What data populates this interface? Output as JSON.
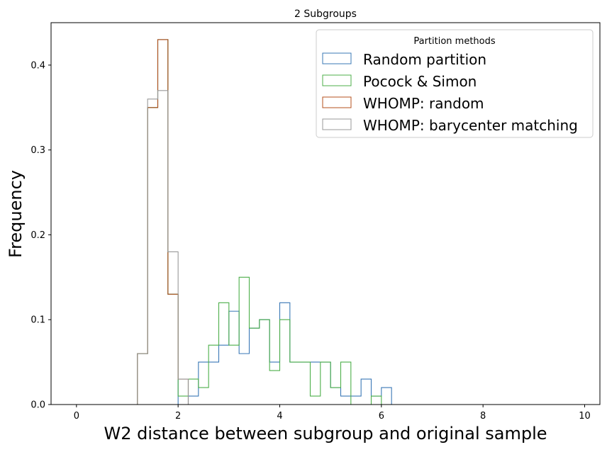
{
  "chart_data": {
    "type": "histogram-step",
    "title": "2 Subgroups",
    "xlabel": "W2 distance between subgroup and original sample",
    "ylabel": "Frequency",
    "xlim": [
      -0.5,
      10.3
    ],
    "ylim": [
      0,
      0.45
    ],
    "xticks": [
      0,
      2,
      4,
      6,
      8,
      10
    ],
    "yticks": [
      0.0,
      0.1,
      0.2,
      0.3,
      0.4
    ],
    "xtick_labels": [
      "0",
      "2",
      "4",
      "6",
      "8",
      "10"
    ],
    "ytick_labels": [
      "0.0",
      "0.1",
      "0.2",
      "0.3",
      "0.4"
    ],
    "bin_start": 0,
    "bin_width": 0.2,
    "x_end": 9.8,
    "legend": {
      "title": "Partition methods",
      "position": "top-right"
    },
    "series": [
      {
        "name": "Random partition",
        "color": "#3a78b6",
        "values": [
          0,
          0,
          0,
          0,
          0,
          0,
          0.06,
          0.35,
          0.43,
          0.13,
          0,
          0.01,
          0.05,
          0.05,
          0.07,
          0.11,
          0.06,
          0.09,
          0.1,
          0.05,
          0.12,
          0.05,
          0.05,
          0.05,
          0.05,
          0.02,
          0.01,
          0.01,
          0.03,
          0.01,
          0.02
        ]
      },
      {
        "name": "Pocock & Simon",
        "color": "#4daf4a",
        "values": [
          0,
          0,
          0,
          0,
          0,
          0,
          0.06,
          0.35,
          0.43,
          0.13,
          0.01,
          0.03,
          0.02,
          0.07,
          0.12,
          0.07,
          0.15,
          0.09,
          0.1,
          0.04,
          0.1,
          0.05,
          0.05,
          0.01,
          0.05,
          0.02,
          0.05,
          0,
          0,
          0.01,
          0
        ]
      },
      {
        "name": "WHOMP: random",
        "color": "#b5501e",
        "values": [
          0,
          0,
          0,
          0,
          0,
          0,
          0.06,
          0.35,
          0.43,
          0.13,
          0.03,
          0
        ]
      },
      {
        "name": "WHOMP: barycenter matching",
        "color": "#999999",
        "values": [
          0,
          0,
          0,
          0,
          0,
          0,
          0.06,
          0.36,
          0.37,
          0.18,
          0.03,
          0
        ]
      }
    ]
  }
}
